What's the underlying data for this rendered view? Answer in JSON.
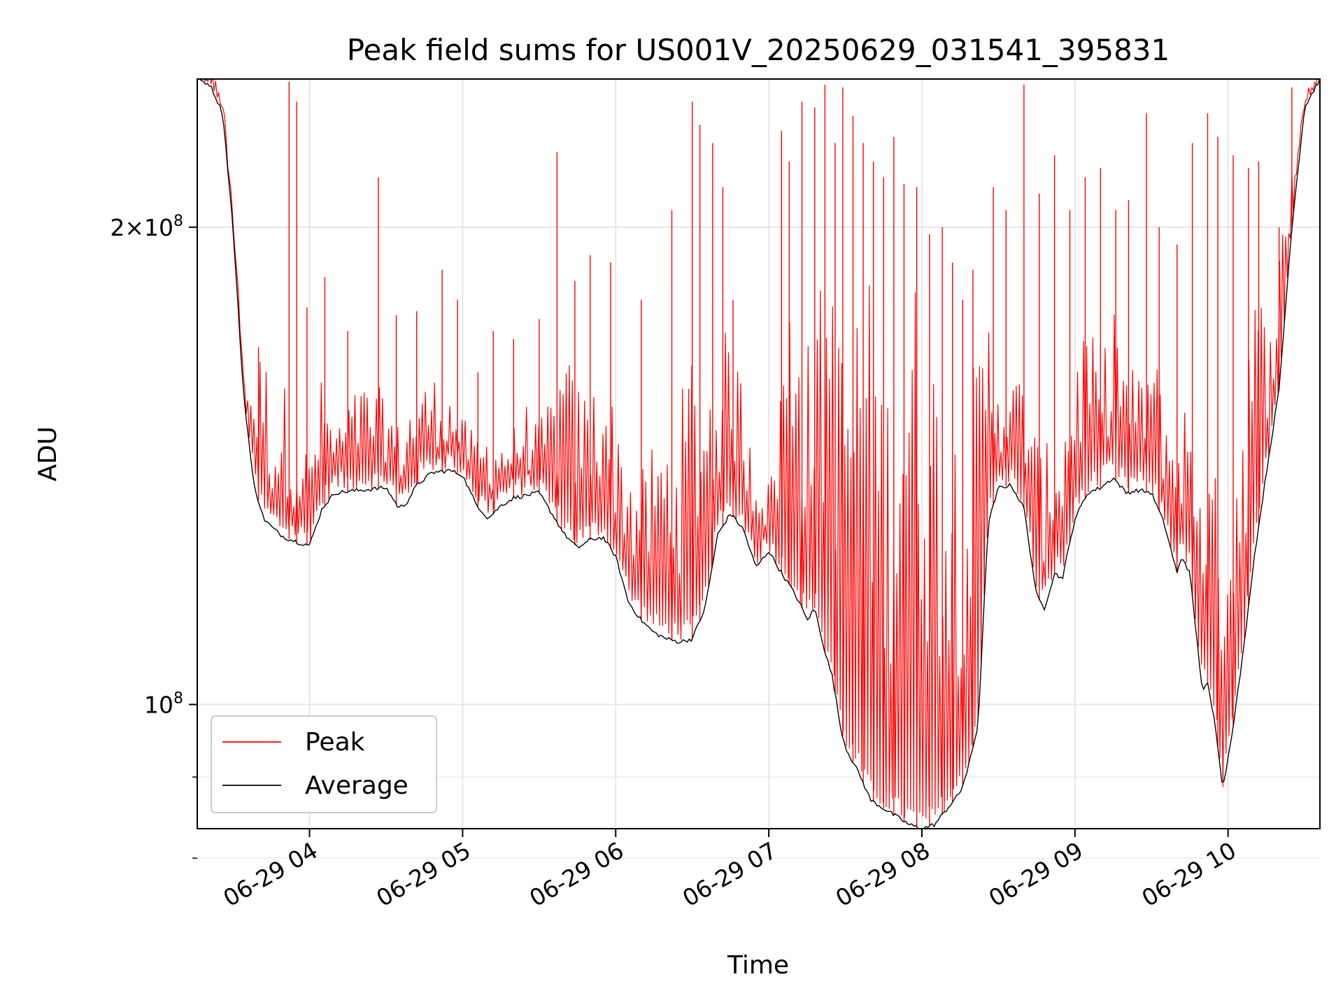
{
  "chart_data": {
    "type": "line",
    "title": "Peak field sums for US001V_20250629_031541_395831",
    "xlabel": "Time",
    "ylabel": "ADU",
    "x_axis": "time",
    "y_scale": "log",
    "xlim": [
      "2025-06-29 03:16",
      "2025-06-29 10:36"
    ],
    "ylim": [
      83500000.0,
      248000000.0
    ],
    "x_ticks": [
      {
        "t": "2025-06-29 04:00",
        "label": "06-29 04"
      },
      {
        "t": "2025-06-29 05:00",
        "label": "06-29 05"
      },
      {
        "t": "2025-06-29 06:00",
        "label": "06-29 06"
      },
      {
        "t": "2025-06-29 07:00",
        "label": "06-29 07"
      },
      {
        "t": "2025-06-29 08:00",
        "label": "06-29 08"
      },
      {
        "t": "2025-06-29 09:00",
        "label": "06-29 09"
      },
      {
        "t": "2025-06-29 10:00",
        "label": "06-29 10"
      }
    ],
    "y_ticks": [
      {
        "value": 100000000,
        "label": "10^8"
      },
      {
        "value": 200000000,
        "label": "2×10^8"
      }
    ],
    "y_minor_ticks": [
      90000000,
      80000000
    ],
    "grid": true,
    "legend": "lower-left",
    "series": [
      {
        "name": "Average",
        "color": "#000000",
        "x": [
          "03:16",
          "03:21",
          "03:26",
          "03:30",
          "03:34",
          "03:38",
          "03:42",
          "03:46",
          "03:50",
          "03:56",
          "04:00",
          "04:05",
          "04:10",
          "04:20",
          "04:30",
          "04:35",
          "04:38",
          "04:42",
          "04:48",
          "04:55",
          "05:00",
          "05:05",
          "05:10",
          "05:15",
          "05:20",
          "05:25",
          "05:30",
          "05:40",
          "05:45",
          "05:50",
          "05:55",
          "06:00",
          "06:05",
          "06:10",
          "06:15",
          "06:20",
          "06:25",
          "06:30",
          "06:35",
          "06:40",
          "06:45",
          "06:50",
          "06:55",
          "07:00",
          "07:05",
          "07:08",
          "07:12",
          "07:15",
          "07:18",
          "07:22",
          "07:25",
          "07:28",
          "07:30",
          "07:33",
          "07:36",
          "07:40",
          "07:45",
          "07:50",
          "07:55",
          "08:00",
          "08:05",
          "08:10",
          "08:15",
          "08:18",
          "08:22",
          "08:26",
          "08:30",
          "08:35",
          "08:40",
          "08:45",
          "08:48",
          "08:52",
          "08:55",
          "09:00",
          "09:05",
          "09:10",
          "09:15",
          "09:20",
          "09:25",
          "09:30",
          "09:35",
          "09:40",
          "09:42",
          "09:45",
          "09:48",
          "09:50",
          "09:52",
          "09:55",
          "09:58",
          "10:02",
          "10:06",
          "10:10",
          "10:15",
          "10:20",
          "10:25",
          "10:30",
          "10:36"
        ],
        "y": [
          248000000,
          246000000,
          236000000,
          200000000,
          158000000,
          138000000,
          131000000,
          129000000,
          127500000,
          126500000,
          126000000,
          133000000,
          136000000,
          136500000,
          137000000,
          133000000,
          134000000,
          137500000,
          140000000,
          140500000,
          139500000,
          134000000,
          131000000,
          133500000,
          135000000,
          135500000,
          136000000,
          128000000,
          125500000,
          127000000,
          127500000,
          124000000,
          116000000,
          113000000,
          111000000,
          110000000,
          109500000,
          110000000,
          115000000,
          128000000,
          132000000,
          129000000,
          122000000,
          125000000,
          121000000,
          119000000,
          116000000,
          113000000,
          115000000,
          108000000,
          104000000,
          97000000,
          94000000,
          92000000,
          90000000,
          87000000,
          86000000,
          85000000,
          84000000,
          83500000,
          84000000,
          86000000,
          88000000,
          91000000,
          97000000,
          130000000,
          137000000,
          137500000,
          133000000,
          117000000,
          115000000,
          121000000,
          120000000,
          131000000,
          136000000,
          137000000,
          139000000,
          136000000,
          136500000,
          136000000,
          130000000,
          121000000,
          124000000,
          121000000,
          109000000,
          102000000,
          103000000,
          97000000,
          88500000,
          97000000,
          108000000,
          123000000,
          140000000,
          158000000,
          200000000,
          238000000,
          248000000
        ]
      },
      {
        "name": "Peak",
        "color": "#ff0000",
        "x": [
          "03:16",
          "03:21",
          "03:26",
          "03:30",
          "03:34",
          "03:38",
          "03:42",
          "03:46",
          "03:50",
          "03:56",
          "04:00",
          "04:05",
          "04:10",
          "04:20",
          "04:30",
          "04:35",
          "04:38",
          "04:42",
          "04:48",
          "04:55",
          "05:00",
          "05:05",
          "05:10",
          "05:15",
          "05:20",
          "05:25",
          "05:30",
          "05:40",
          "05:45",
          "05:50",
          "05:55",
          "06:00",
          "06:05",
          "06:10",
          "06:15",
          "06:20",
          "06:25",
          "06:30",
          "06:35",
          "06:40",
          "06:45",
          "06:50",
          "06:55",
          "07:00",
          "07:05",
          "07:08",
          "07:12",
          "07:15",
          "07:18",
          "07:22",
          "07:25",
          "07:28",
          "07:30",
          "07:33",
          "07:36",
          "07:40",
          "07:45",
          "07:50",
          "07:55",
          "08:00",
          "08:05",
          "08:10",
          "08:15",
          "08:18",
          "08:22",
          "08:26",
          "08:30",
          "08:35",
          "08:40",
          "08:45",
          "08:48",
          "08:52",
          "08:55",
          "09:00",
          "09:05",
          "09:10",
          "09:15",
          "09:20",
          "09:25",
          "09:30",
          "09:35",
          "09:40",
          "09:42",
          "09:45",
          "09:48",
          "09:50",
          "09:52",
          "09:55",
          "09:58",
          "10:02",
          "10:06",
          "10:10",
          "10:15",
          "10:20",
          "10:25",
          "10:30",
          "10:36"
        ],
        "y": [
          248000000,
          247000000,
          240000000,
          205000000,
          165000000,
          160000000,
          172000000,
          150000000,
          160000000,
          148000000,
          145000000,
          162000000,
          150000000,
          160000000,
          158000000,
          150000000,
          155000000,
          158000000,
          162000000,
          158000000,
          152000000,
          148000000,
          150000000,
          148000000,
          150000000,
          155000000,
          150000000,
          168000000,
          160000000,
          158000000,
          168000000,
          152000000,
          145000000,
          140000000,
          148000000,
          150000000,
          155000000,
          172000000,
          162000000,
          168000000,
          175000000,
          160000000,
          150000000,
          138000000,
          168000000,
          185000000,
          195000000,
          170000000,
          178000000,
          190000000,
          205000000,
          168000000,
          180000000,
          175000000,
          195000000,
          185000000,
          160000000,
          172000000,
          190000000,
          185000000,
          170000000,
          158000000,
          152000000,
          160000000,
          168000000,
          180000000,
          165000000,
          160000000,
          165000000,
          148000000,
          145000000,
          150000000,
          152000000,
          168000000,
          178000000,
          160000000,
          185000000,
          165000000,
          162000000,
          170000000,
          158000000,
          150000000,
          160000000,
          150000000,
          148000000,
          160000000,
          145000000,
          140000000,
          150000000,
          140000000,
          170000000,
          185000000,
          180000000,
          195000000,
          220000000,
          240000000,
          248000000
        ]
      }
    ],
    "peak_spikes": {
      "x": [
        "03:40",
        "03:52",
        "03:55",
        "03:59",
        "04:06",
        "04:15",
        "04:27",
        "04:34",
        "04:42",
        "04:52",
        "04:58",
        "05:06",
        "05:12",
        "05:20",
        "05:30",
        "05:37",
        "05:44",
        "05:50",
        "05:58",
        "06:10",
        "06:22",
        "06:30",
        "06:33",
        "06:38",
        "06:42",
        "06:46",
        "07:05",
        "07:08",
        "07:13",
        "07:18",
        "07:22",
        "07:26",
        "07:29",
        "07:33",
        "07:37",
        "07:41",
        "07:45",
        "07:49",
        "07:53",
        "07:58",
        "08:03",
        "08:08",
        "08:12",
        "08:16",
        "08:20",
        "08:28",
        "08:33",
        "08:40",
        "08:46",
        "08:52",
        "08:58",
        "09:04",
        "09:10",
        "09:16",
        "09:21",
        "09:28",
        "09:33",
        "09:40",
        "09:46",
        "09:52",
        "09:56",
        "10:02",
        "10:08",
        "10:12",
        "10:20",
        "10:25"
      ],
      "y": [
        168000000,
        247000000,
        240000000,
        178000000,
        186000000,
        172000000,
        215000000,
        176000000,
        177000000,
        188000000,
        180000000,
        162000000,
        172000000,
        170000000,
        175000000,
        223000000,
        185000000,
        192000000,
        190000000,
        180000000,
        205000000,
        240000000,
        232000000,
        226000000,
        212000000,
        180000000,
        230000000,
        220000000,
        240000000,
        238000000,
        246000000,
        226000000,
        245000000,
        235000000,
        226000000,
        220000000,
        215000000,
        228000000,
        213000000,
        212000000,
        198000000,
        200000000,
        190000000,
        180000000,
        188000000,
        212000000,
        205000000,
        246000000,
        210000000,
        222000000,
        205000000,
        215000000,
        218000000,
        205000000,
        208000000,
        236000000,
        200000000,
        195000000,
        226000000,
        236000000,
        228000000,
        222000000,
        218000000,
        220000000,
        200000000,
        245000000
      ]
    }
  }
}
